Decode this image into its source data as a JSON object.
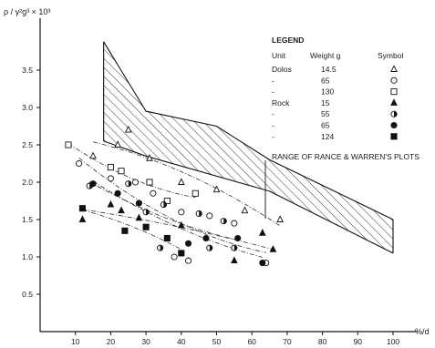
{
  "chart_data": {
    "type": "scatter",
    "ylabel": "ρ / γ²g³ × 10³",
    "xlabel": "%/d",
    "xlim": [
      0,
      105
    ],
    "ylim": [
      0,
      4.0
    ],
    "x_ticks": [
      "10",
      "20",
      "30",
      "40",
      "50",
      "60",
      "70",
      "80",
      "90",
      "100"
    ],
    "y_ticks": [
      "0.5",
      "1.0",
      "1.5",
      "2.0",
      "2.5",
      "3.0",
      "3.5"
    ],
    "grid": false,
    "legend": {
      "title": "LEGEND",
      "headers": [
        "Unit",
        "Weight g",
        "Symbol"
      ],
      "rows": [
        {
          "unit": "Dolos",
          "weight": "14.5",
          "symbol": "open-triangle"
        },
        {
          "unit": "-",
          "weight": "65",
          "symbol": "open-circle"
        },
        {
          "unit": "-",
          "weight": "130",
          "symbol": "open-square"
        },
        {
          "unit": "Rock",
          "weight": "15",
          "symbol": "filled-triangle"
        },
        {
          "unit": "-",
          "weight": "55",
          "symbol": "half-circle"
        },
        {
          "unit": "-",
          "weight": "65",
          "symbol": "filled-circle"
        },
        {
          "unit": "-",
          "weight": "124",
          "symbol": "filled-square"
        }
      ]
    },
    "annotation": "RANGE OF RANCE & WARREN'S PLOTS",
    "range_band": {
      "upper": [
        [
          18,
          3.88
        ],
        [
          30,
          2.95
        ],
        [
          50,
          2.75
        ],
        [
          65,
          2.3
        ],
        [
          100,
          1.5
        ]
      ],
      "lower": [
        [
          18,
          2.55
        ],
        [
          30,
          2.35
        ],
        [
          65,
          1.88
        ],
        [
          100,
          1.05
        ]
      ]
    },
    "series": [
      {
        "name": "Dolos 14.5",
        "symbol": "open-triangle",
        "points": [
          [
            15,
            2.35
          ],
          [
            22,
            2.5
          ],
          [
            25,
            2.7
          ],
          [
            31,
            2.32
          ],
          [
            40,
            2.0
          ],
          [
            50,
            1.9
          ],
          [
            58,
            1.62
          ],
          [
            68,
            1.5
          ]
        ]
      },
      {
        "name": "Dolos 65",
        "symbol": "open-circle",
        "points": [
          [
            11,
            2.25
          ],
          [
            20,
            2.05
          ],
          [
            27,
            2.0
          ],
          [
            32,
            1.85
          ],
          [
            40,
            1.6
          ],
          [
            48,
            1.55
          ],
          [
            55,
            1.45
          ],
          [
            64,
            0.92
          ],
          [
            38,
            1.0
          ],
          [
            42,
            0.95
          ]
        ]
      },
      {
        "name": "Dolos 130",
        "symbol": "open-square",
        "points": [
          [
            8,
            2.5
          ],
          [
            20,
            2.2
          ],
          [
            23,
            2.15
          ],
          [
            31,
            2.0
          ],
          [
            36,
            1.75
          ],
          [
            44,
            1.85
          ]
        ]
      },
      {
        "name": "Rock 15",
        "symbol": "filled-triangle",
        "points": [
          [
            12,
            1.5
          ],
          [
            20,
            1.7
          ],
          [
            23,
            1.62
          ],
          [
            28,
            1.52
          ],
          [
            40,
            1.42
          ],
          [
            55,
            0.95
          ],
          [
            66,
            1.1
          ],
          [
            63,
            1.32
          ]
        ]
      },
      {
        "name": "Rock 55",
        "symbol": "half-circle",
        "points": [
          [
            14,
            1.95
          ],
          [
            25,
            1.98
          ],
          [
            30,
            1.6
          ],
          [
            35,
            1.7
          ],
          [
            45,
            1.58
          ],
          [
            52,
            1.48
          ],
          [
            34,
            1.12
          ],
          [
            48,
            1.12
          ],
          [
            55,
            1.12
          ]
        ]
      },
      {
        "name": "Rock 65",
        "symbol": "filled-circle",
        "points": [
          [
            15,
            1.98
          ],
          [
            22,
            1.85
          ],
          [
            28,
            1.72
          ],
          [
            42,
            1.18
          ],
          [
            47,
            1.25
          ],
          [
            56,
            1.25
          ],
          [
            63,
            0.92
          ]
        ]
      },
      {
        "name": "Rock 124",
        "symbol": "filled-square",
        "points": [
          [
            12,
            1.65
          ],
          [
            24,
            1.35
          ],
          [
            30,
            1.4
          ],
          [
            36,
            1.25
          ],
          [
            40,
            1.05
          ]
        ]
      }
    ]
  }
}
